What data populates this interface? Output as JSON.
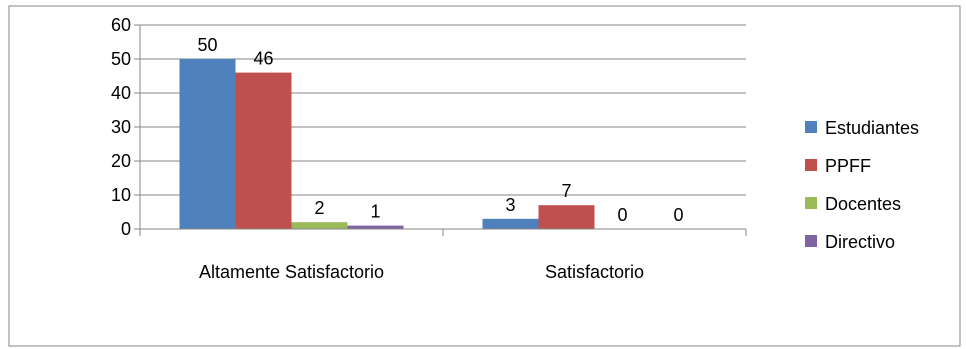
{
  "chart_data": {
    "type": "bar",
    "categories": [
      "Altamente Satisfactorio",
      "Satisfactorio"
    ],
    "series": [
      {
        "name": "Estudiantes",
        "values": [
          50,
          3
        ],
        "color": "#4F81BD"
      },
      {
        "name": "PPFF",
        "values": [
          46,
          7
        ],
        "color": "#C0504D"
      },
      {
        "name": "Docentes",
        "values": [
          2,
          0
        ],
        "color": "#9BBB59"
      },
      {
        "name": "Directivo",
        "values": [
          1,
          0
        ],
        "color": "#8064A2"
      }
    ],
    "yticks": [
      "0",
      "10",
      "20",
      "30",
      "40",
      "50",
      "60"
    ],
    "ylim": [
      0,
      60
    ],
    "grid": true,
    "legend": "right",
    "title": "",
    "xlabel": "",
    "ylabel": ""
  }
}
